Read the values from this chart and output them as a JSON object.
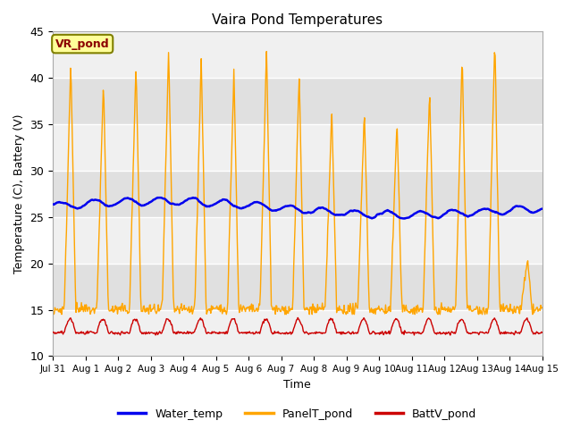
{
  "title": "Vaira Pond Temperatures",
  "xlabel": "Time",
  "ylabel": "Temperature (C), Battery (V)",
  "ylim": [
    10,
    45
  ],
  "yticks": [
    10,
    15,
    20,
    25,
    30,
    35,
    40,
    45
  ],
  "station_label": "VR_pond",
  "plot_bg_color": "#ffffff",
  "band_color_light": "#f0f0f0",
  "band_color_dark": "#e0e0e0",
  "water_temp_color": "#0000ee",
  "panel_temp_color": "#ffa500",
  "batt_color": "#cc0000",
  "legend_labels": [
    "Water_temp",
    "PanelT_pond",
    "BattV_pond"
  ],
  "figsize": [
    6.4,
    4.8
  ],
  "dpi": 100
}
